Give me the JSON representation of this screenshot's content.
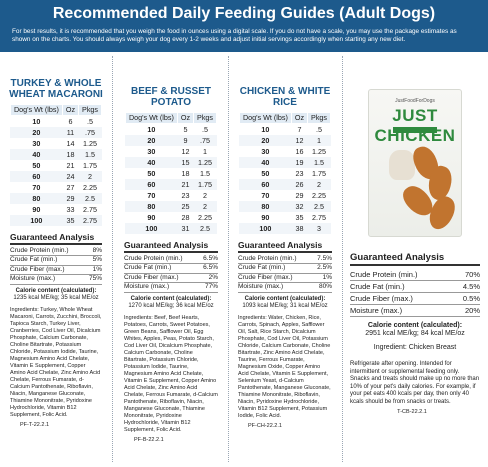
{
  "header": {
    "title": "Recommended Daily Feeding Guides (Adult Dogs)",
    "intro": "For best results, it is recommended that you weigh the food in ounces using a digital scale. If you do not have a scale, you may use the package estimates as shown on the charts. You should always weigh your dog every 1-2 weeks and adjust initial servings accordingly when starting any new diet."
  },
  "recipes": [
    {
      "name": "TURKEY & WHOLE WHEAT MACARONI",
      "columns": [
        "Dog's Wt (lbs)",
        "Oz",
        "Pkgs"
      ],
      "rows": [
        [
          "10",
          "6",
          ".5"
        ],
        [
          "20",
          "11",
          ".75"
        ],
        [
          "30",
          "14",
          "1.25"
        ],
        [
          "40",
          "18",
          "1.5"
        ],
        [
          "50",
          "21",
          "1.75"
        ],
        [
          "60",
          "24",
          "2"
        ],
        [
          "70",
          "27",
          "2.25"
        ],
        [
          "80",
          "29",
          "2.5"
        ],
        [
          "90",
          "33",
          "2.75"
        ],
        [
          "100",
          "35",
          "2.75"
        ]
      ],
      "ga_title": "Guaranteed Analysis",
      "ga": [
        [
          "Crude Protein (min.)",
          "8%"
        ],
        [
          "Crude Fat (min.)",
          "5%"
        ],
        [
          "Crude Fiber (max.)",
          "1%"
        ],
        [
          "Moisture (max.)",
          "75%"
        ]
      ],
      "cal_label": "Calorie content (calculated):",
      "cal_value": "1235 kcal ME/kg; 35 kcal ME/oz",
      "ingredients": "Ingredients: Turkey, Whole Wheat Macaroni, Carrots, Zucchini, Broccoli, Tapioca Starch, Turkey Liver, Cranberries, Cod Liver Oil, Dicalcium Phosphate, Calcium Carbonate, Choline Bitartrate, Potassium Chloride, Potassium Iodide, Taurine, Magnesium Amino Acid Chelate, Vitamin E Supplement, Copper Amino Acid Chelate, Zinc Amino Acid Chelate, Ferrous Fumarate, d-Calcium Pantothenate, Riboflavin, Niacin, Manganese Gluconate, Thiamine Mononitrate, Pyridoxine Hydrochloride, Vitamin B12 Supplement, Folic Acid.",
      "code": "PF-T-22.2.1"
    },
    {
      "name": "BEEF & RUSSET POTATO",
      "columns": [
        "Dog's Wt (lbs)",
        "Oz",
        "Pkgs"
      ],
      "rows": [
        [
          "10",
          "5",
          ".5"
        ],
        [
          "20",
          "9",
          ".75"
        ],
        [
          "30",
          "12",
          "1"
        ],
        [
          "40",
          "15",
          "1.25"
        ],
        [
          "50",
          "18",
          "1.5"
        ],
        [
          "60",
          "21",
          "1.75"
        ],
        [
          "70",
          "23",
          "2"
        ],
        [
          "80",
          "25",
          "2"
        ],
        [
          "90",
          "28",
          "2.25"
        ],
        [
          "100",
          "31",
          "2.5"
        ]
      ],
      "ga_title": "Guaranteed Analysis",
      "ga": [
        [
          "Crude Protein (min.)",
          "6.5%"
        ],
        [
          "Crude Fat (min.)",
          "6.5%"
        ],
        [
          "Crude Fiber (max.)",
          "2%"
        ],
        [
          "Moisture (max.)",
          "77%"
        ]
      ],
      "cal_label": "Calorie content (calculated):",
      "cal_value": "1270 kcal ME/kg; 36 kcal ME/oz",
      "ingredients": "Ingredients: Beef, Beef Hearts, Potatoes, Carrots, Sweet Potatoes, Green Beans, Safflower Oil, Egg Whites, Apples, Peas, Potato Starch, Cod Liver Oil, Dicalcium Phosphate, Calcium Carbonate, Choline Bitartrate, Potassium Chloride, Potassium Iodide, Taurine, Magnesium Amino Acid Chelate, Vitamin E Supplement, Copper Amino Acid Chelate, Zinc Amino Acid Chelate, Ferrous Fumarate, d-Calcium Pantothenate, Riboflavin, Niacin, Manganese Gluconate, Thiamine Mononitrate, Pyridoxine Hydrochloride, Vitamin B12 Supplement, Folic Acid.",
      "code": "PF-B-22.2.1"
    },
    {
      "name": "CHICKEN & WHITE RICE",
      "columns": [
        "Dog's Wt (lbs)",
        "Oz",
        "Pkgs"
      ],
      "rows": [
        [
          "10",
          "7",
          ".5"
        ],
        [
          "20",
          "12",
          "1"
        ],
        [
          "30",
          "16",
          "1.25"
        ],
        [
          "40",
          "19",
          "1.5"
        ],
        [
          "50",
          "23",
          "1.75"
        ],
        [
          "60",
          "26",
          "2"
        ],
        [
          "70",
          "29",
          "2.25"
        ],
        [
          "80",
          "32",
          "2.5"
        ],
        [
          "90",
          "35",
          "2.75"
        ],
        [
          "100",
          "38",
          "3"
        ]
      ],
      "ga_title": "Guaranteed Analysis",
      "ga": [
        [
          "Crude Protein (min.)",
          "7.5%"
        ],
        [
          "Crude Fat (min.)",
          "2.5%"
        ],
        [
          "Crude Fiber (max.)",
          "1%"
        ],
        [
          "Moisture (max.)",
          "80%"
        ]
      ],
      "cal_label": "Calorie content (calculated):",
      "cal_value": "1093 kcal ME/kg; 31 kcal ME/oz",
      "ingredients": "Ingredients: Water, Chicken, Rice, Carrots, Spinach, Apples, Safflower Oil, Salt, Rice Starch, Dicalcium Phosphate, Cod Liver Oil, Potassium Chloride, Calcium Carbonate, Choline Bitartrate, Zinc Amino Acid Chelate, Taurine, Ferrous Fumarate, Magnesium Oxide, Copper Amino Acid Chelate, Vitamin E Supplement, Selenium Yeast, d-Calcium Pantothenate, Manganese Gluconate, Thiamine Mononitrate, Riboflavin, Niacin, Pyridoxine Hydrochloride, Vitamin B12 Supplement, Potassium Iodide, Folic Acid.",
      "code": "PF-CH-22.2.1"
    }
  ],
  "treat": {
    "brand": "JustFoodForDogs",
    "product_name": "JUST CHICKEN",
    "ga_title": "Guaranteed Analysis",
    "ga": [
      [
        "Crude Protein (min.)",
        "70%"
      ],
      [
        "Crude Fat (min.)",
        "4.5%"
      ],
      [
        "Crude Fiber (max.)",
        "0.5%"
      ],
      [
        "Moisture (max.)",
        "20%"
      ]
    ],
    "cal_label": "Calorie content (calculated):",
    "cal_value": "2951 kcal ME/kg; 84 kcal ME/oz",
    "ingredients": "Ingredient: Chicken Breast",
    "note": "Refrigerate after opening. Intended for intermittent or supplemental feeding only. Snacks and treats should make up no more than 10% of your pet's daily calories. For example, if your pet eats 400 kcals per day, then only 40 kcals should be from snacks or treats.",
    "code": "T-CB-22.2.1"
  }
}
